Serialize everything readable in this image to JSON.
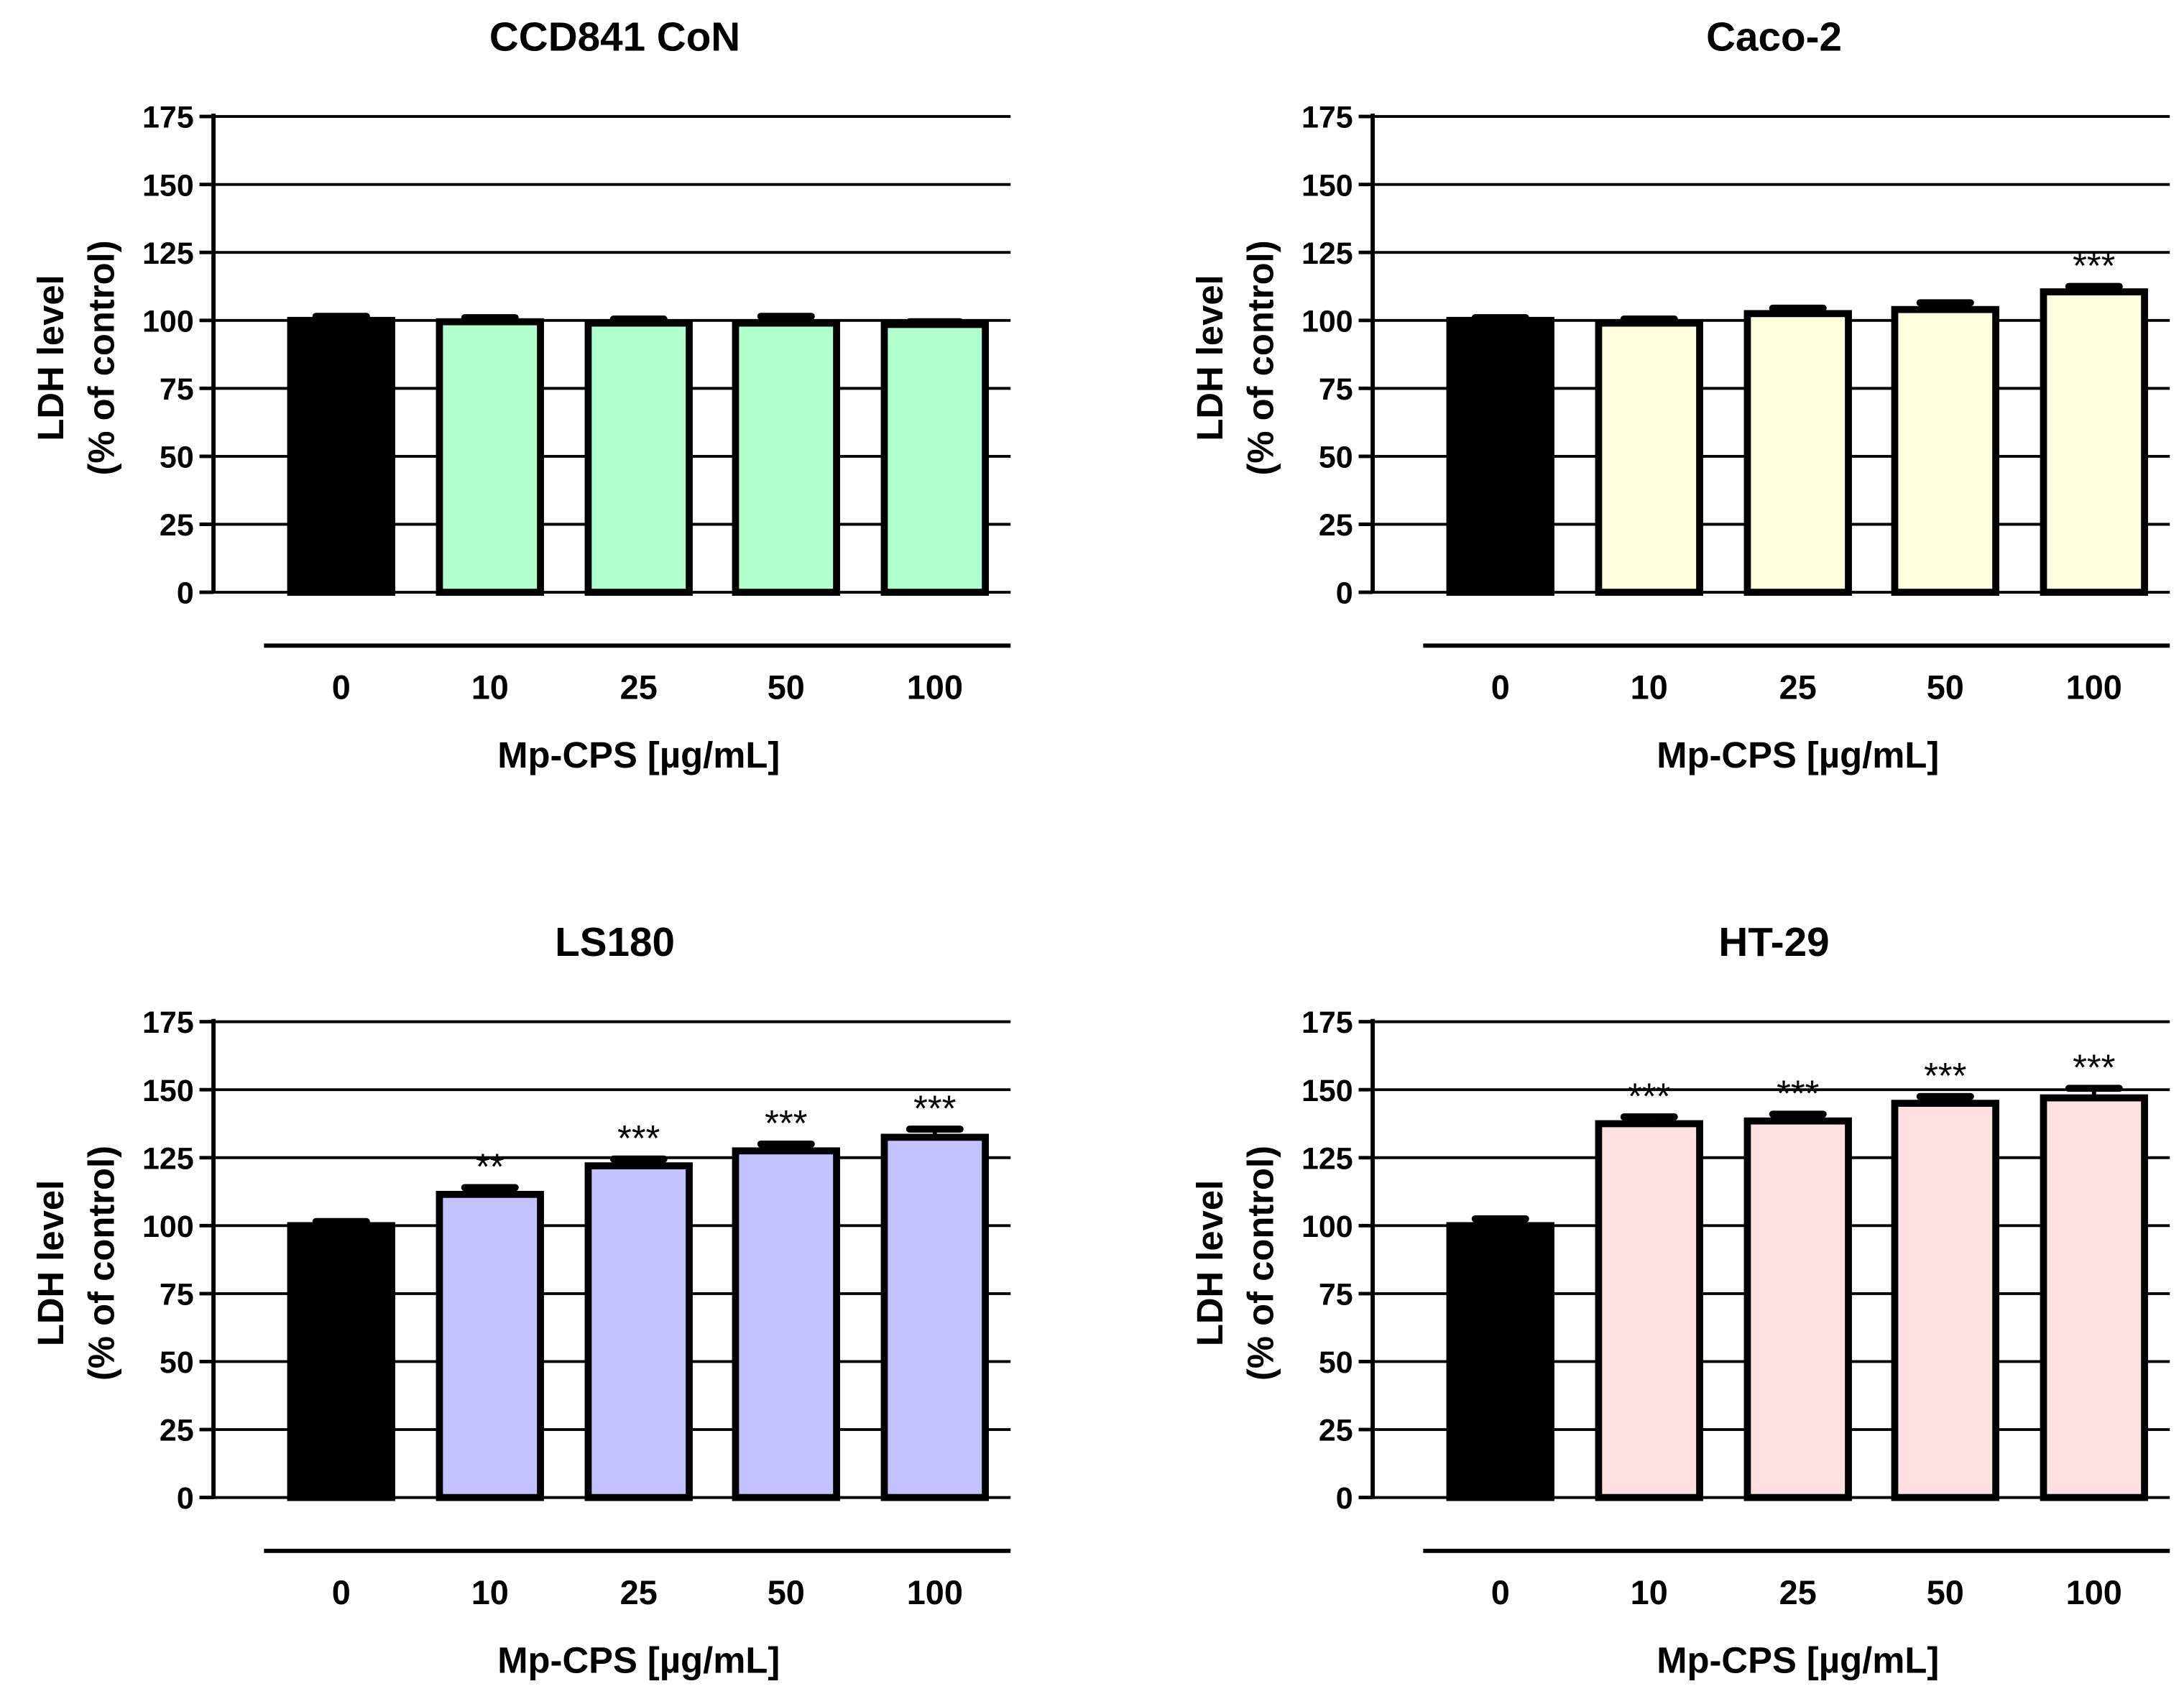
{
  "chart_data": [
    {
      "type": "bar",
      "title": "CCD841 CoN",
      "xlabel": "Mp-CPS [µg/mL]",
      "ylabel": [
        "LDH level",
        "(% of control)"
      ],
      "categories": [
        "0",
        "10",
        "25",
        "50",
        "100"
      ],
      "values": [
        100,
        99.5,
        99,
        99,
        98.5
      ],
      "errors": [
        1.5,
        1.5,
        1.5,
        2.5,
        1
      ],
      "significance": [
        "",
        "",
        "",
        "",
        ""
      ],
      "colors": [
        "#000000",
        "#b0ffcc",
        "#b0ffcc",
        "#b0ffcc",
        "#b0ffcc"
      ],
      "ylim": [
        0,
        175
      ],
      "yticks": [
        "0",
        "25",
        "50",
        "75",
        "100",
        "125",
        "150",
        "175"
      ],
      "grid": true
    },
    {
      "type": "bar",
      "title": "Caco-2",
      "xlabel": "Mp-CPS [µg/mL]",
      "ylabel": [
        "LDH level",
        "(% of control)"
      ],
      "categories": [
        "0",
        "10",
        "25",
        "50",
        "100"
      ],
      "values": [
        100,
        99,
        102.5,
        104,
        110.5
      ],
      "errors": [
        1,
        1.5,
        2,
        2.5,
        2
      ],
      "significance": [
        "",
        "",
        "",
        "",
        "***"
      ],
      "colors": [
        "#000000",
        "#ffffde",
        "#ffffde",
        "#ffffde",
        "#ffffde"
      ],
      "ylim": [
        0,
        175
      ],
      "yticks": [
        "0",
        "25",
        "50",
        "75",
        "100",
        "125",
        "150",
        "175"
      ],
      "grid": true
    },
    {
      "type": "bar",
      "title": "LS180",
      "xlabel": "Mp-CPS [µg/mL]",
      "ylabel": [
        "LDH level",
        "(% of control)"
      ],
      "categories": [
        "0",
        "10",
        "25",
        "50",
        "100"
      ],
      "values": [
        100,
        111.5,
        122,
        127.5,
        132.5
      ],
      "errors": [
        1.5,
        2.5,
        2.5,
        2.5,
        3
      ],
      "significance": [
        "",
        "**",
        "***",
        "***",
        "***"
      ],
      "colors": [
        "#000000",
        "#c2c2ff",
        "#c2c2ff",
        "#c2c2ff",
        "#c2c2ff"
      ],
      "ylim": [
        0,
        175
      ],
      "yticks": [
        "0",
        "25",
        "50",
        "75",
        "100",
        "125",
        "150",
        "175"
      ],
      "grid": true
    },
    {
      "type": "bar",
      "title": "HT-29",
      "xlabel": "Mp-CPS [µg/mL]",
      "ylabel": [
        "LDH level",
        "(% of control)"
      ],
      "categories": [
        "0",
        "10",
        "25",
        "50",
        "100"
      ],
      "values": [
        100,
        137.5,
        138.5,
        145,
        147
      ],
      "errors": [
        2.5,
        2.5,
        2.5,
        2.5,
        3.5
      ],
      "significance": [
        "",
        "***",
        "***",
        "***",
        "***"
      ],
      "colors": [
        "#000000",
        "#ffe0e0",
        "#ffe0e0",
        "#ffe0e0",
        "#ffe0e0"
      ],
      "ylim": [
        0,
        175
      ],
      "yticks": [
        "0",
        "25",
        "50",
        "75",
        "100",
        "125",
        "150",
        "175"
      ],
      "grid": true
    }
  ]
}
